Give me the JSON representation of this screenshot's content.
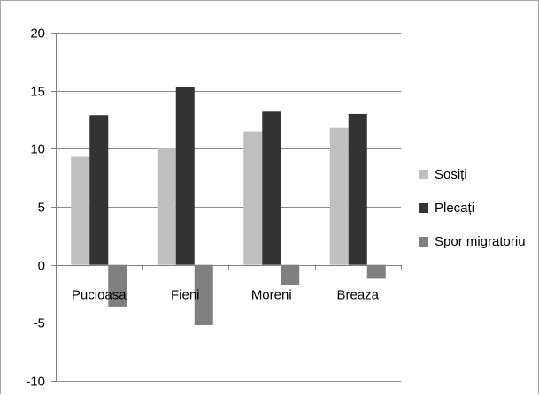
{
  "chart_data": {
    "type": "bar",
    "title": "",
    "xlabel": "",
    "ylabel": "",
    "categories": [
      "Pucioasa",
      "Fieni",
      "Moreni",
      "Breaza"
    ],
    "series": [
      {
        "name": "Sosiți",
        "values": [
          9.3,
          10.1,
          11.5,
          11.8
        ],
        "color": "#bfbfbf"
      },
      {
        "name": "Plecați",
        "values": [
          12.9,
          15.3,
          13.2,
          13.0
        ],
        "color": "#333333"
      },
      {
        "name": "Spor migratoriu",
        "values": [
          -3.6,
          -5.2,
          -1.7,
          -1.2
        ],
        "color": "#808080"
      }
    ],
    "ylim": [
      -10,
      20
    ],
    "yticks": [
      20,
      15,
      10,
      5,
      0,
      -5,
      -10
    ],
    "grid": true,
    "legend_position": "right"
  }
}
